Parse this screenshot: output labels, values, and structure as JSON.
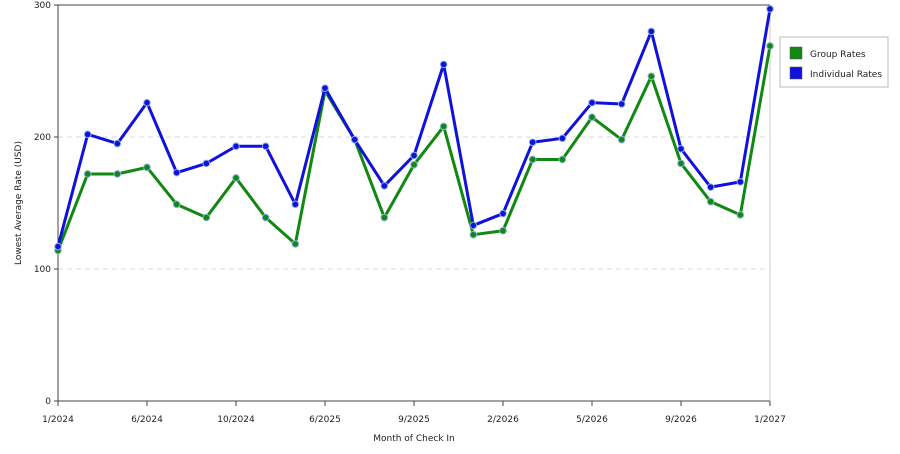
{
  "chart_data": {
    "type": "line",
    "title": "",
    "xlabel": "Month of Check In",
    "ylabel": "Lowest Average Rate (USD)",
    "ylim": [
      0,
      300
    ],
    "yticks": [
      0,
      100,
      200,
      300
    ],
    "grid": true,
    "legend_position": "right",
    "x_tick_labels": [
      "1/2024",
      "6/2024",
      "10/2024",
      "6/2025",
      "9/2025",
      "2/2026",
      "5/2026",
      "9/2026",
      "1/2027"
    ],
    "x_tick_indices": [
      0,
      3,
      6,
      9,
      12,
      15,
      18,
      21,
      24
    ],
    "x_count": 25,
    "series": [
      {
        "name": "Group Rates",
        "color": "#118811",
        "values": [
          114,
          172,
          172,
          177,
          149,
          139,
          169,
          139,
          119,
          235,
          198,
          139,
          179,
          208,
          126,
          129,
          183,
          183,
          215,
          198,
          246,
          180,
          151,
          141,
          269
        ]
      },
      {
        "name": "Individual Rates",
        "color": "#1111dd",
        "values": [
          117,
          202,
          195,
          226,
          173,
          180,
          193,
          193,
          149,
          237,
          198,
          163,
          186,
          255,
          133,
          142,
          196,
          199,
          226,
          225,
          280,
          191,
          162,
          166,
          297
        ]
      }
    ]
  }
}
